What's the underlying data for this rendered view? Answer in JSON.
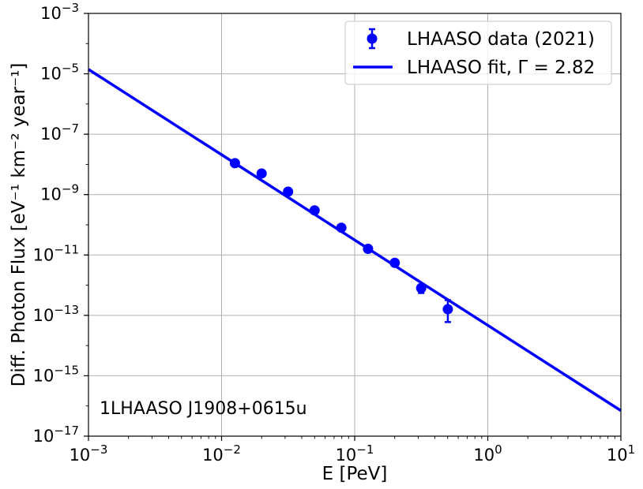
{
  "chart_data": {
    "type": "scatter",
    "title": "",
    "xlabel": "E [PeV]",
    "ylabel": "Diff. Photon Flux [eV⁻¹ km⁻² year⁻¹]",
    "xscale": "log",
    "yscale": "log",
    "xlim": [
      0.001,
      10
    ],
    "ylim": [
      1e-17,
      0.001
    ],
    "grid": true,
    "legend_position": "top-right",
    "x_ticks": [
      {
        "value": 0.001,
        "base": "10",
        "exp": "−3"
      },
      {
        "value": 0.01,
        "base": "10",
        "exp": "−2"
      },
      {
        "value": 0.1,
        "base": "10",
        "exp": "−1"
      },
      {
        "value": 1,
        "base": "10",
        "exp": "0"
      },
      {
        "value": 10,
        "base": "10",
        "exp": "1"
      }
    ],
    "y_ticks": [
      {
        "value": 1e-17,
        "base": "10",
        "exp": "−17"
      },
      {
        "value": 1e-15,
        "base": "10",
        "exp": "−15"
      },
      {
        "value": 1e-13,
        "base": "10",
        "exp": "−13"
      },
      {
        "value": 1e-11,
        "base": "10",
        "exp": "−11"
      },
      {
        "value": 1e-09,
        "base": "10",
        "exp": "−9"
      },
      {
        "value": 1e-07,
        "base": "10",
        "exp": "−7"
      },
      {
        "value": 1e-05,
        "base": "10",
        "exp": "−5"
      },
      {
        "value": 0.001,
        "base": "10",
        "exp": "−3"
      }
    ],
    "series": [
      {
        "name": "LHAASO data (2021)",
        "kind": "points_with_errorbars",
        "color": "#0000ff",
        "x": [
          0.0126,
          0.02,
          0.0316,
          0.05,
          0.0794,
          0.126,
          0.2,
          0.316,
          0.501
        ],
        "y": [
          1.1e-08,
          5e-09,
          1.25e-09,
          3e-10,
          8e-11,
          1.6e-11,
          5.5e-12,
          8e-13,
          1.6e-13
        ],
        "y_err_low": [
          1e-09,
          5e-10,
          1.2e-10,
          3e-11,
          8e-12,
          1.6e-12,
          6e-13,
          2.5e-13,
          1e-13
        ],
        "y_err_high": [
          1e-09,
          5e-10,
          1.2e-10,
          3e-11,
          8e-12,
          1.6e-12,
          6e-13,
          2.5e-13,
          1.6e-13
        ]
      },
      {
        "name": "LHAASO fit, Γ = 2.82",
        "kind": "line",
        "color": "#0000ff",
        "spectral_index": 2.82,
        "x": [
          0.001,
          10
        ],
        "y": [
          1.4e-05,
          7e-17
        ]
      }
    ],
    "legend": {
      "data_label": "LHAASO data (2021)",
      "fit_label_prefix": "LHAASO fit, Γ = ",
      "fit_gamma": "2.82"
    },
    "annotation": "1LHAASO J1908+0615u"
  }
}
